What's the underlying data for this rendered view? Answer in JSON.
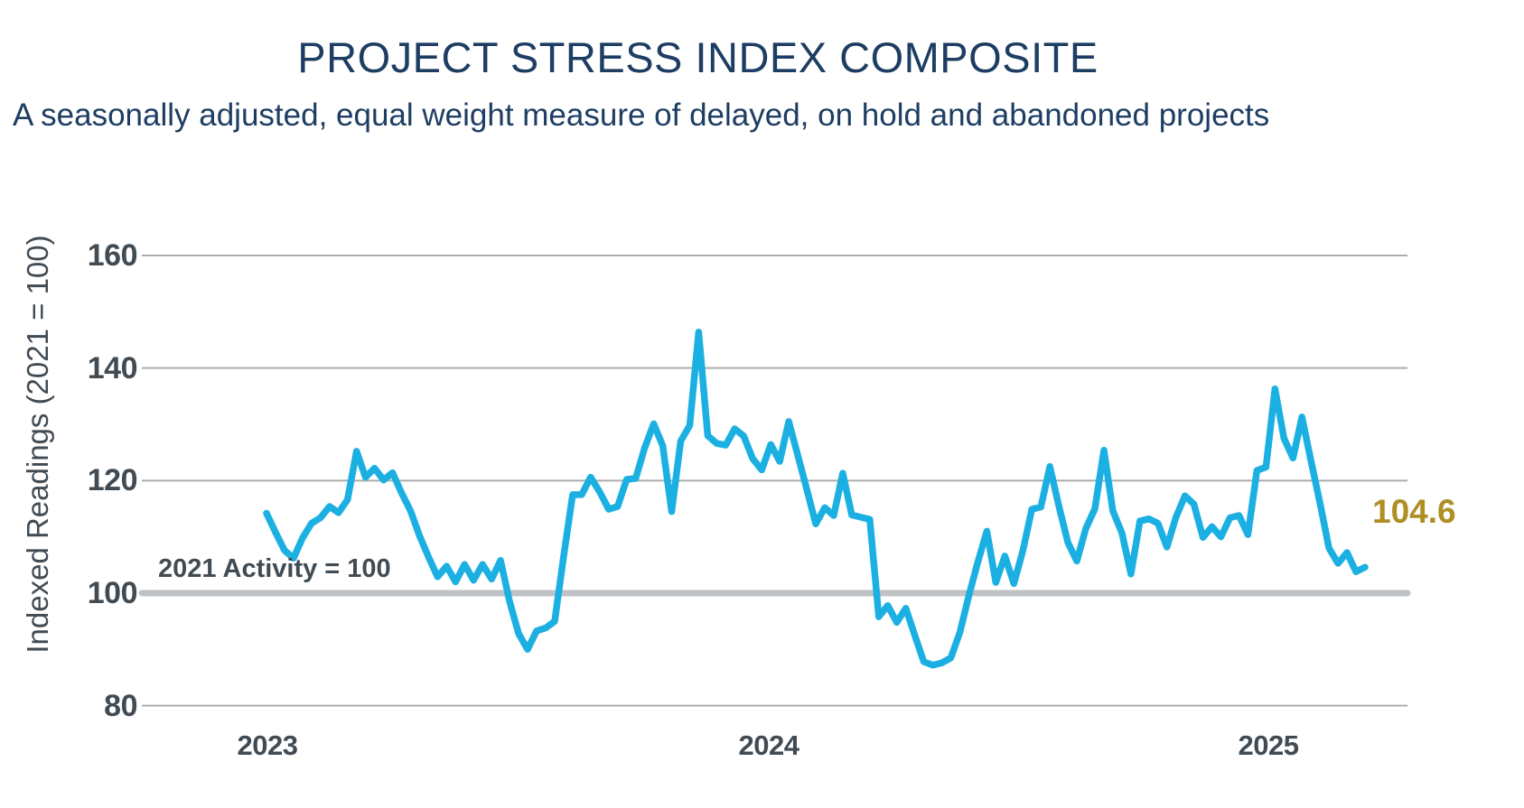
{
  "title": "PROJECT STRESS INDEX COMPOSITE",
  "subtitle": "A seasonally adjusted, equal weight measure of delayed, on hold and abandoned projects",
  "y_axis": {
    "title": "Indexed Readings (2021 = 100)"
  },
  "annotation": {
    "text": "2021 Activity = 100"
  },
  "latest": {
    "text": "104.6"
  },
  "colors": {
    "title_navy": "#1D3D63",
    "axis_text": "#414B53",
    "line_blue": "#1CB0E2",
    "gridline": "#ACACAC",
    "baseline_gray": "#BFC2C4",
    "latest_gold": "#AF8E24",
    "background": "#FFFFFF"
  },
  "chart_data": {
    "type": "line",
    "title": "PROJECT STRESS INDEX COMPOSITE",
    "subtitle": "A seasonally adjusted, equal weight measure of delayed, on hold and abandoned projects",
    "ylabel": "Indexed Readings (2021 = 100)",
    "ylim": [
      80,
      160
    ],
    "y_ticks": [
      160,
      140,
      120,
      100,
      80
    ],
    "x_tick_labels": [
      "2023",
      "2024",
      "2025"
    ],
    "grid": "horizontal",
    "legend": "none",
    "baseline": {
      "value": 100,
      "label": "2021 Activity = 100"
    },
    "latest_value": 104.6,
    "frequency_hint": "weekly points from start of 2023 to early 2025",
    "series": [
      {
        "name": "Project Stress Index Composite",
        "color": "#1CB0E2",
        "values": [
          114.2,
          110.8,
          107.6,
          106.2,
          109.8,
          112.4,
          113.4,
          115.4,
          114.3,
          116.6,
          125.2,
          120.6,
          122.2,
          120.1,
          121.4,
          117.8,
          114.6,
          110.2,
          106.4,
          102.9,
          104.8,
          102.0,
          105.1,
          102.3,
          105.1,
          102.5,
          105.8,
          98.5,
          92.8,
          90.0,
          93.3,
          93.8,
          95.0,
          106.5,
          117.5,
          117.5,
          120.6,
          118.0,
          114.9,
          115.4,
          120.2,
          120.4,
          125.8,
          130.1,
          126.2,
          114.5,
          127.0,
          129.8,
          146.4,
          128.0,
          126.6,
          126.3,
          129.2,
          127.9,
          123.9,
          121.9,
          126.4,
          123.4,
          130.5,
          124.5,
          118.5,
          112.3,
          115.2,
          113.8,
          121.3,
          113.9,
          113.5,
          113.1,
          95.8,
          97.8,
          94.8,
          97.3,
          92.5,
          87.8,
          87.2,
          87.6,
          88.5,
          93.0,
          99.5,
          105.5,
          111.0,
          101.9,
          106.6,
          101.7,
          107.5,
          114.9,
          115.3,
          122.5,
          115.5,
          109.0,
          105.7,
          111.5,
          115.0,
          125.4,
          114.6,
          110.7,
          103.4,
          112.8,
          113.2,
          112.4,
          108.2,
          113.5,
          117.3,
          115.8,
          109.9,
          111.8,
          110.0,
          113.4,
          113.8,
          110.4,
          121.8,
          122.4,
          136.3,
          127.5,
          124.0,
          131.3,
          123.5,
          116.0,
          108.0,
          105.3,
          107.2,
          103.8,
          104.6
        ]
      }
    ]
  }
}
